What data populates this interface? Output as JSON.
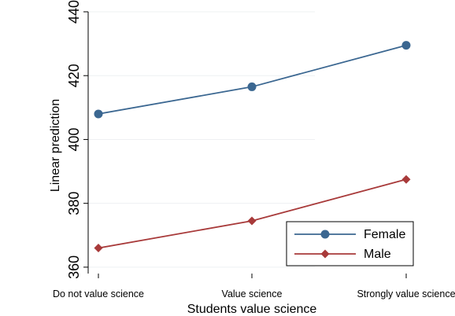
{
  "chart_data": {
    "type": "line",
    "title": "",
    "xlabel": "Students value science",
    "ylabel": "Linear prediction",
    "categories": [
      "Do not value science",
      "Value science",
      "Strongly value science"
    ],
    "ylim": [
      358,
      440
    ],
    "yticks": [
      360,
      380,
      400,
      420,
      440
    ],
    "grid": true,
    "legend": "bottom-right",
    "series": [
      {
        "name": "Female",
        "values": [
          408,
          416.5,
          429.5
        ],
        "color": "#3b6791",
        "marker": "circle"
      },
      {
        "name": "Male",
        "values": [
          366,
          374.5,
          387.5
        ],
        "color": "#a83a3a",
        "marker": "diamond"
      }
    ]
  }
}
